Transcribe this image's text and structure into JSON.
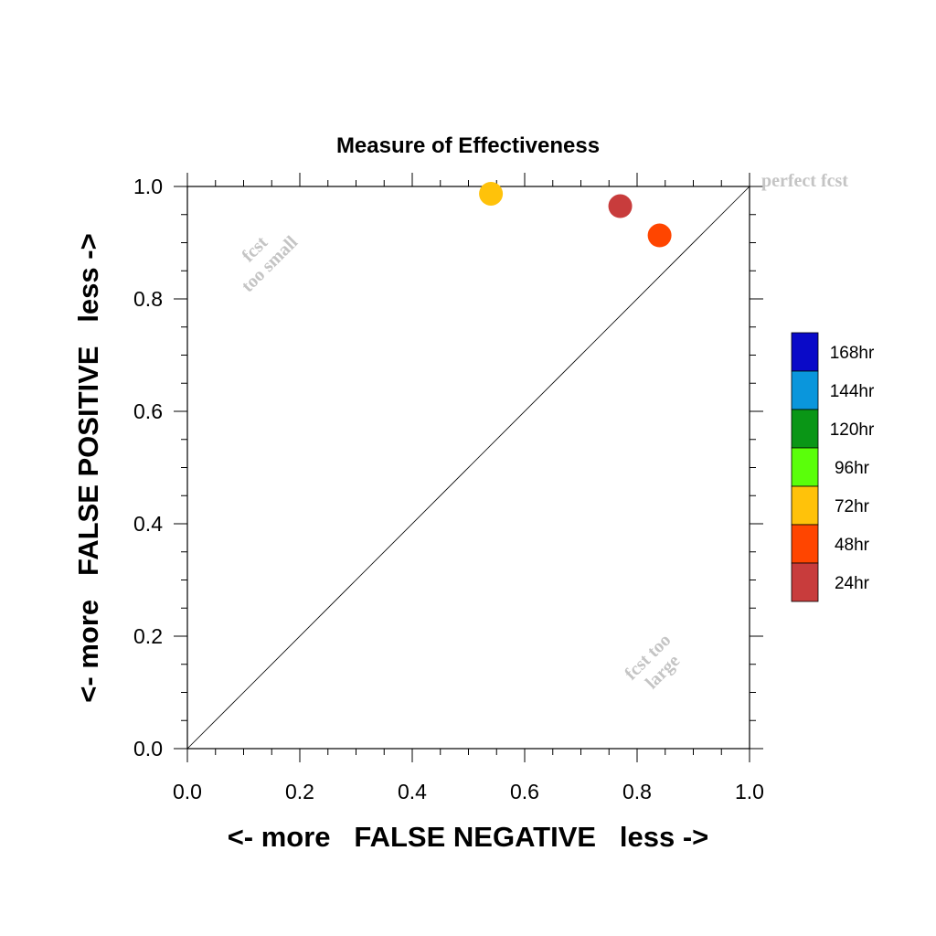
{
  "chart_data": {
    "type": "scatter",
    "title": "Measure of Effectiveness",
    "xlabel": "<- more   FALSE NEGATIVE   less ->",
    "ylabel": "<- more   FALSE POSITIVE   less ->",
    "xlim": [
      0.0,
      1.0
    ],
    "ylim": [
      0.0,
      1.0
    ],
    "xticks": [
      "0.0",
      "0.2",
      "0.4",
      "0.6",
      "0.8",
      "1.0"
    ],
    "yticks": [
      "0.0",
      "0.2",
      "0.4",
      "0.6",
      "0.8",
      "1.0"
    ],
    "grid": false,
    "reference_line": "diagonal",
    "annotations": {
      "perfect": "perfect fcst",
      "too_small": [
        "fcst",
        "too small"
      ],
      "too_large": [
        "fcst too",
        "large"
      ]
    },
    "legend": {
      "placement": "right",
      "items": [
        {
          "label": "168hr",
          "color": "#0a0ac8"
        },
        {
          "label": "144hr",
          "color": "#0a96dc"
        },
        {
          "label": "120hr",
          "color": "#0a9616"
        },
        {
          "label": "96hr",
          "color": "#5aff0a"
        },
        {
          "label": "72hr",
          "color": "#ffc20a"
        },
        {
          "label": "48hr",
          "color": "#ff4500"
        },
        {
          "label": "24hr",
          "color": "#c83c3c"
        }
      ]
    },
    "points": [
      {
        "series": "72hr",
        "x": 0.54,
        "y": 0.987,
        "color": "#ffc20a"
      },
      {
        "series": "24hr",
        "x": 0.77,
        "y": 0.965,
        "color": "#c83c3c"
      },
      {
        "series": "48hr",
        "x": 0.84,
        "y": 0.913,
        "color": "#ff4500"
      }
    ]
  }
}
